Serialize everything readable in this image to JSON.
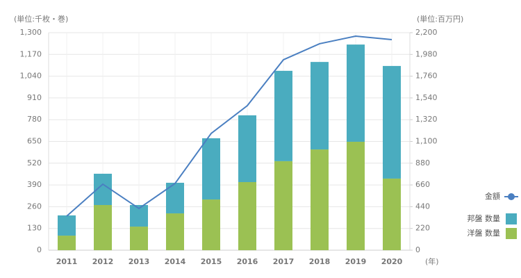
{
  "chart_data": {
    "type": "stacked-bar-line",
    "y_label": "(単位:千枚・巻)",
    "y2_label": "(単位:百万円)",
    "x_label": "(年)",
    "categories": [
      "2011",
      "2012",
      "2013",
      "2014",
      "2015",
      "2016",
      "2017",
      "2018",
      "2019",
      "2020"
    ],
    "series": [
      {
        "name": "洋盤 数量",
        "color": "#9bc153",
        "values": [
          87,
          270,
          141,
          220,
          303,
          407,
          532,
          602,
          648,
          428
        ]
      },
      {
        "name": "邦盤 数量",
        "color": "#4aacbf",
        "values": [
          121,
          187,
          129,
          183,
          366,
          399,
          540,
          523,
          581,
          673
        ]
      },
      {
        "name": "金額",
        "color": "#4a7fc1",
        "axis": "y2",
        "values": [
          344,
          668,
          422,
          675,
          1181,
          1462,
          1926,
          2088,
          2165,
          2130
        ]
      }
    ],
    "ylim": [
      0,
      1300
    ],
    "yticks": [
      0,
      130,
      260,
      390,
      520,
      650,
      780,
      910,
      {
        "value": 1040,
        "label": "1,040"
      },
      {
        "value": 1170,
        "label": "1,170"
      },
      {
        "value": 1300,
        "label": "1,300"
      }
    ],
    "y2lim": [
      0,
      2200
    ],
    "y2ticks": [
      0,
      220,
      440,
      660,
      880,
      {
        "value": 1100,
        "label": "1,100"
      },
      {
        "value": 1320,
        "label": "1,320"
      },
      {
        "value": 1540,
        "label": "1,540"
      },
      {
        "value": 1760,
        "label": "1,760"
      },
      {
        "value": 1980,
        "label": "1,980"
      },
      {
        "value": 2200,
        "label": "2,200"
      }
    ],
    "grid": true
  }
}
